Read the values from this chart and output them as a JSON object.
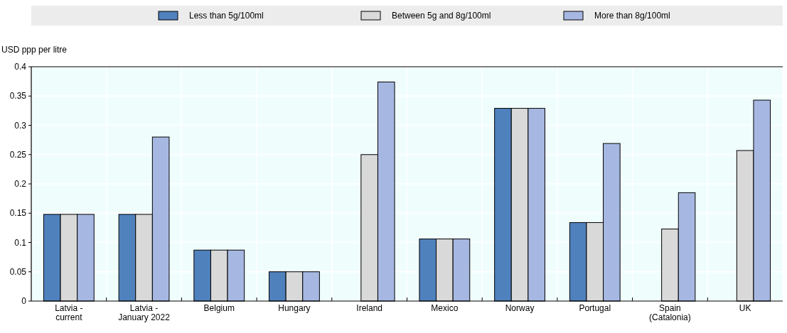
{
  "chart_data": {
    "type": "bar",
    "ylabel": "USD ppp per litre",
    "categories": [
      "Latvia - current",
      "Latvia - January 2022",
      "Belgium",
      "Hungary",
      "Ireland",
      "Mexico",
      "Norway",
      "Portugal",
      "Spain (Catalonia)",
      "UK"
    ],
    "series": [
      {
        "name": "Less than 5g/100ml",
        "color": "#4f81bd",
        "values": [
          0.148,
          0.148,
          0.087,
          0.05,
          null,
          0.106,
          0.329,
          0.134,
          null,
          null
        ]
      },
      {
        "name": "Between 5g and 8g/100ml",
        "color": "#d9d9d9",
        "values": [
          0.148,
          0.148,
          0.087,
          0.05,
          0.25,
          0.106,
          0.329,
          0.134,
          0.123,
          0.257
        ]
      },
      {
        "name": "More than 8g/100ml",
        "color": "#a6b8e2",
        "values": [
          0.148,
          0.28,
          0.087,
          0.05,
          0.374,
          0.106,
          0.329,
          0.269,
          0.185,
          0.343
        ]
      }
    ],
    "ylim": [
      0,
      0.4
    ],
    "yticks": [
      0,
      0.05,
      0.1,
      0.15,
      0.2,
      0.25,
      0.3,
      0.35,
      0.4
    ],
    "grid": true,
    "legend": "top"
  }
}
